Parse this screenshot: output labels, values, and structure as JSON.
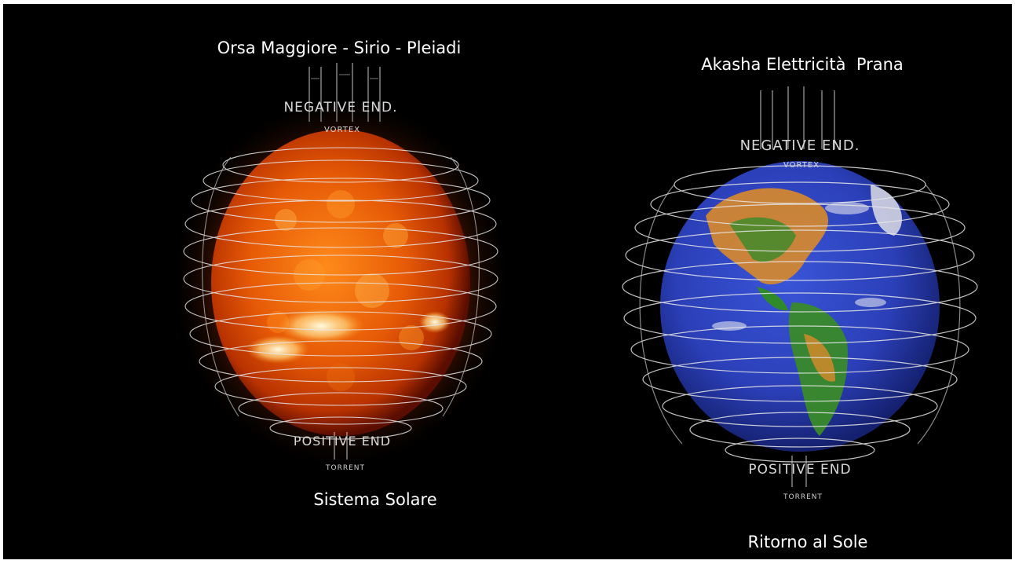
{
  "slide": {
    "background": "#000000",
    "left_figure": {
      "caption_top": "Orsa Maggiore - Sirio - Pleiadi",
      "caption_bottom": "Sistema Solare",
      "label_top": "NEGATIVE END.",
      "label_vortex": "VORTEX",
      "label_bottom": "POSITIVE END",
      "label_torrent": "TORRENT",
      "sphere_colors": [
        "#fff6c8",
        "#ff8a1a",
        "#d33b00",
        "#5a0d00"
      ]
    },
    "right_figure": {
      "caption_top": "Akasha Elettricità  Prana",
      "caption_bottom": "Ritorno al Sole",
      "label_top": "NEGATIVE END.",
      "label_vortex": "VORTEX",
      "label_bottom": "POSITIVE END",
      "label_torrent": "TORRENT",
      "sphere_colors": [
        "#2f49c9",
        "#1a2a8c",
        "#2f8a2a",
        "#d9892a"
      ]
    }
  }
}
